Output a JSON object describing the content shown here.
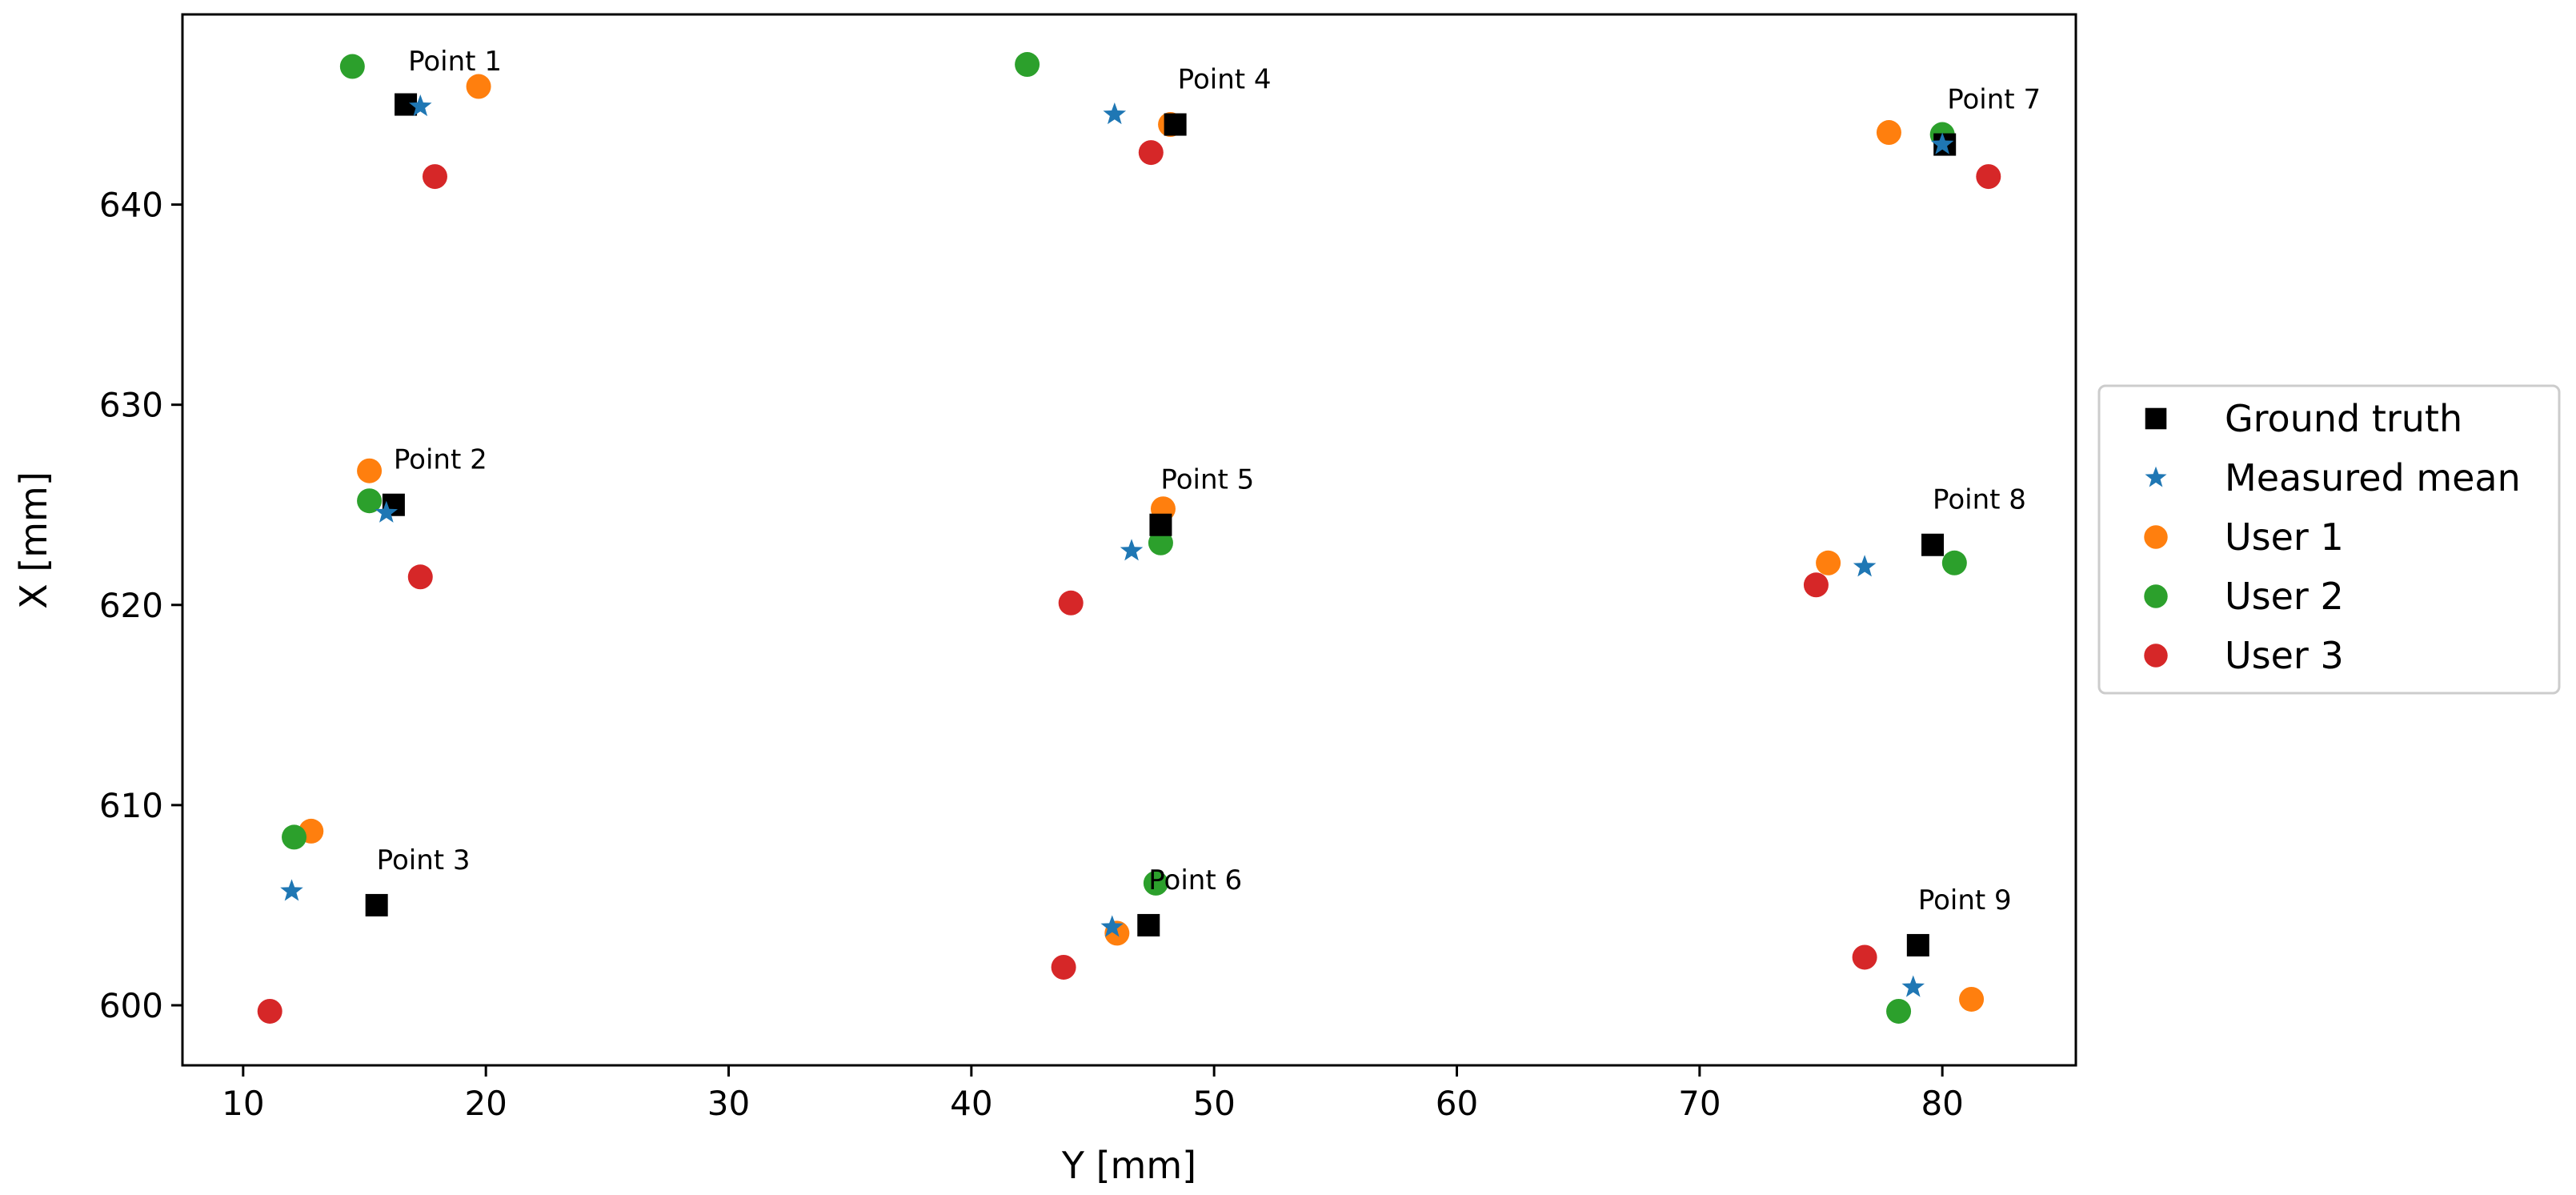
{
  "chart_data": {
    "type": "scatter",
    "title": "",
    "xlabel": "Y [mm]",
    "ylabel": "X [mm]",
    "xlim": [
      7.5,
      85.5
    ],
    "ylim": [
      597.0,
      649.5
    ],
    "xticks": [
      10,
      20,
      30,
      40,
      50,
      60,
      70,
      80
    ],
    "yticks": [
      600,
      610,
      620,
      630,
      640
    ],
    "grid": false,
    "legend_position": "center-right-outside",
    "series": [
      {
        "name": "Ground truth",
        "marker": "square",
        "color": "#000000",
        "points": [
          {
            "x": 16.7,
            "y": 645.0
          },
          {
            "x": 16.2,
            "y": 625.0
          },
          {
            "x": 15.5,
            "y": 605.0
          },
          {
            "x": 48.4,
            "y": 644.0
          },
          {
            "x": 47.8,
            "y": 624.0
          },
          {
            "x": 47.3,
            "y": 604.0
          },
          {
            "x": 80.1,
            "y": 643.0
          },
          {
            "x": 79.6,
            "y": 623.0
          },
          {
            "x": 79.0,
            "y": 603.0
          }
        ]
      },
      {
        "name": "Measured mean",
        "marker": "star",
        "color": "#1f77b4",
        "points": [
          {
            "x": 17.3,
            "y": 644.9
          },
          {
            "x": 15.9,
            "y": 624.6
          },
          {
            "x": 12.0,
            "y": 605.7
          },
          {
            "x": 45.9,
            "y": 644.5
          },
          {
            "x": 46.6,
            "y": 622.7
          },
          {
            "x": 45.8,
            "y": 603.9
          },
          {
            "x": 80.0,
            "y": 643.0
          },
          {
            "x": 76.8,
            "y": 621.9
          },
          {
            "x": 78.8,
            "y": 600.9
          }
        ]
      },
      {
        "name": "User 1",
        "marker": "circle",
        "color": "#ff7f0e",
        "points": [
          {
            "x": 19.7,
            "y": 645.9
          },
          {
            "x": 15.2,
            "y": 626.7
          },
          {
            "x": 12.8,
            "y": 608.7
          },
          {
            "x": 48.2,
            "y": 644.0
          },
          {
            "x": 47.9,
            "y": 624.8
          },
          {
            "x": 46.0,
            "y": 603.6
          },
          {
            "x": 77.8,
            "y": 643.6
          },
          {
            "x": 75.3,
            "y": 622.1
          },
          {
            "x": 81.2,
            "y": 600.3
          }
        ]
      },
      {
        "name": "User 2",
        "marker": "circle",
        "color": "#2ca02c",
        "points": [
          {
            "x": 14.5,
            "y": 646.9
          },
          {
            "x": 15.2,
            "y": 625.2
          },
          {
            "x": 12.1,
            "y": 608.4
          },
          {
            "x": 42.3,
            "y": 647.0
          },
          {
            "x": 47.8,
            "y": 623.1
          },
          {
            "x": 47.6,
            "y": 606.1
          },
          {
            "x": 80.0,
            "y": 643.5
          },
          {
            "x": 80.5,
            "y": 622.1
          },
          {
            "x": 78.2,
            "y": 599.7
          }
        ]
      },
      {
        "name": "User 3",
        "marker": "circle",
        "color": "#d62728",
        "points": [
          {
            "x": 17.9,
            "y": 641.4
          },
          {
            "x": 17.3,
            "y": 621.4
          },
          {
            "x": 11.1,
            "y": 599.7
          },
          {
            "x": 47.4,
            "y": 642.6
          },
          {
            "x": 44.1,
            "y": 620.1
          },
          {
            "x": 43.8,
            "y": 601.9
          },
          {
            "x": 81.9,
            "y": 641.4
          },
          {
            "x": 74.8,
            "y": 621.0
          },
          {
            "x": 76.8,
            "y": 602.4
          }
        ]
      }
    ],
    "annotations": [
      {
        "text": "Point 1",
        "x": 16.8,
        "y": 646.7
      },
      {
        "text": "Point 2",
        "x": 16.2,
        "y": 626.8
      },
      {
        "text": "Point 3",
        "x": 15.5,
        "y": 606.8
      },
      {
        "text": "Point 4",
        "x": 48.5,
        "y": 645.8
      },
      {
        "text": "Point 5",
        "x": 47.8,
        "y": 625.8
      },
      {
        "text": "Point 6",
        "x": 47.3,
        "y": 605.8
      },
      {
        "text": "Point 7",
        "x": 80.2,
        "y": 644.8
      },
      {
        "text": "Point 8",
        "x": 79.6,
        "y": 624.8
      },
      {
        "text": "Point 9",
        "x": 79.0,
        "y": 604.8
      }
    ]
  }
}
